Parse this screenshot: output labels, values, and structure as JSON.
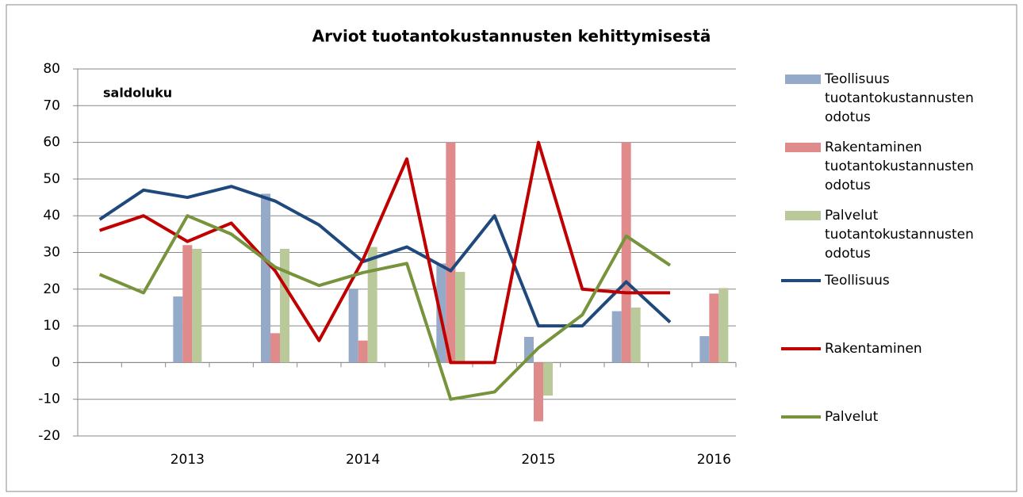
{
  "chart_data": {
    "type": "bar-line",
    "title": "Arviot tuotantokustannusten kehittymisestä",
    "annotation": "saldoluku",
    "categories": [
      null,
      null,
      "2013",
      null,
      null,
      null,
      "2014",
      null,
      null,
      null,
      "2015",
      null,
      null,
      null,
      "2016"
    ],
    "ylim": [
      -20,
      80
    ],
    "yticks": [
      -20,
      -10,
      0,
      10,
      20,
      30,
      40,
      50,
      60,
      70,
      80
    ],
    "grid": true,
    "legend": "right",
    "series": [
      {
        "name": "Teollisuus tuotantokustannusten odotus",
        "kind": "bar",
        "color": "#95a9c9",
        "values": [
          null,
          null,
          18,
          null,
          46,
          null,
          20,
          null,
          27,
          null,
          7,
          null,
          14,
          null,
          7.2
        ]
      },
      {
        "name": "Rakentaminen tuotantokustannusten odotus",
        "kind": "bar",
        "color": "#e08b8b",
        "values": [
          null,
          null,
          32,
          null,
          8,
          null,
          6,
          null,
          60,
          null,
          -16,
          null,
          60,
          null,
          18.8
        ]
      },
      {
        "name": "Palvelut tuotantokustannusten odotus",
        "kind": "bar",
        "color": "#b9c99a",
        "values": [
          null,
          null,
          31,
          null,
          31,
          null,
          31.5,
          null,
          24.7,
          null,
          -9,
          null,
          15,
          null,
          20.3
        ]
      },
      {
        "name": "Teollisuus",
        "kind": "line",
        "color": "#1f497d",
        "values": [
          39,
          47,
          45,
          48,
          44,
          37.5,
          27.5,
          31.5,
          25,
          40,
          10,
          10,
          22,
          11,
          null
        ]
      },
      {
        "name": "Rakentaminen",
        "kind": "line",
        "color": "#c00000",
        "values": [
          36,
          40,
          33,
          38,
          25,
          6,
          28,
          55.5,
          0,
          0,
          60,
          20,
          19,
          19,
          null
        ]
      },
      {
        "name": "Palvelut",
        "kind": "line",
        "color": "#77933c",
        "values": [
          24,
          19,
          40,
          35,
          26,
          21,
          24.5,
          27,
          -10,
          -8,
          4,
          13,
          34.5,
          26.5,
          null
        ]
      }
    ]
  }
}
